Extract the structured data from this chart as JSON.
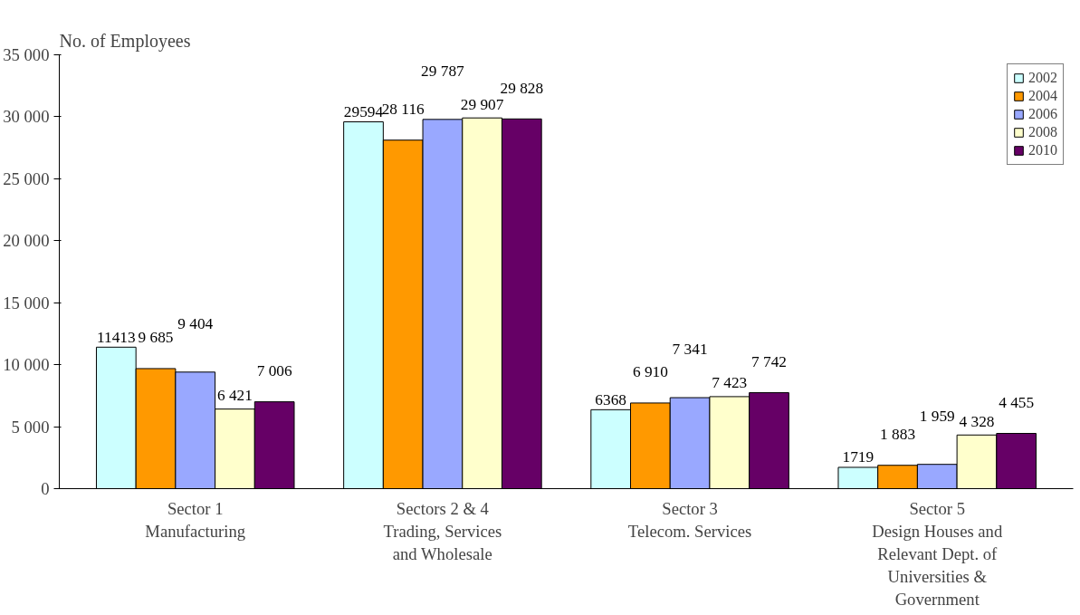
{
  "chart_data": {
    "type": "bar",
    "title": "No. of Employees",
    "categories": [
      "Sector 1\nManufacturing",
      "Sectors 2 & 4\nTrading, Services\nand Wholesale",
      "Sector 3\nTelecom. Services",
      "Sector 5\nDesign Houses and\nRelevant Dept. of\nUniversities &\nGovernment"
    ],
    "series": [
      {
        "name": "2002",
        "color": "#ccffff",
        "values": [
          11413,
          29594,
          6368,
          1719
        ],
        "value_labels": [
          "11413",
          "29594",
          "6368",
          "1719"
        ]
      },
      {
        "name": "2004",
        "color": "#ff9900",
        "values": [
          9685,
          28116,
          6910,
          1883
        ],
        "value_labels": [
          "9 685",
          "28 116",
          "6 910",
          "1 883"
        ]
      },
      {
        "name": "2006",
        "color": "#99a8ff",
        "values": [
          9404,
          29787,
          7341,
          1959
        ],
        "value_labels": [
          "9 404",
          "29 787",
          "7 341",
          "1 959"
        ]
      },
      {
        "name": "2008",
        "color": "#ffffcc",
        "values": [
          6421,
          29907,
          7423,
          4328
        ],
        "value_labels": [
          "6 421",
          "29 907",
          "7 423",
          "4 328"
        ]
      },
      {
        "name": "2010",
        "color": "#660066",
        "values": [
          7006,
          29828,
          7742,
          4455
        ],
        "value_labels": [
          "7 006",
          "29 828",
          "7 742",
          "4 455"
        ]
      }
    ],
    "ylim": [
      0,
      35000
    ],
    "yticks": [
      0,
      {
        "value": 5000,
        "label": "5 000"
      },
      {
        "value": 10000,
        "label": "10 000"
      },
      {
        "value": 15000,
        "label": "15 000"
      },
      {
        "value": 20000,
        "label": "20 000"
      },
      {
        "value": 25000,
        "label": "25 000"
      },
      {
        "value": 30000,
        "label": "30 000"
      },
      {
        "value": 35000,
        "label": "35 000"
      }
    ],
    "grid": false,
    "legend": "top right"
  }
}
